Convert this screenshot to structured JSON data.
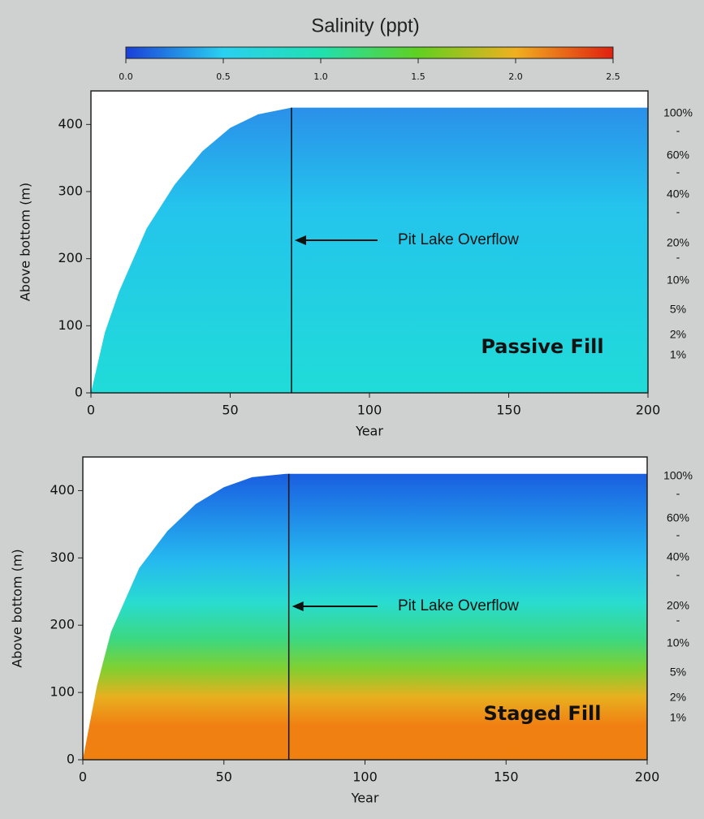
{
  "colorbar": {
    "title": "Salinity (ppt)",
    "lim": [
      0,
      2.5
    ],
    "ticks": [
      {
        "value": 0,
        "label": "0.0"
      },
      {
        "value": 0.5,
        "label": "0.5"
      },
      {
        "value": 1,
        "label": "1.0"
      },
      {
        "value": 1.5,
        "label": "1.5"
      },
      {
        "value": 2,
        "label": "2.0"
      },
      {
        "value": 2.5,
        "label": "2.5"
      }
    ]
  },
  "chart_data": [
    {
      "type": "area",
      "name": "Passive Fill",
      "x_label": "Year",
      "y_label": "Above bottom (m)",
      "xlim": [
        0,
        200
      ],
      "ylim": [
        0,
        450
      ],
      "xticks": [
        0,
        50,
        100,
        150,
        200
      ],
      "yticks": [
        0,
        100,
        200,
        300,
        400
      ],
      "x": [
        0,
        5,
        10,
        20,
        30,
        40,
        50,
        60,
        72,
        200
      ],
      "values": [
        0,
        90,
        150,
        245,
        310,
        360,
        395,
        415,
        425,
        425
      ],
      "overflow_year": 72,
      "annotation": "Pit Lake Overflow",
      "side_labels": [
        "100%",
        "-",
        "60%",
        "-",
        "40%",
        "-",
        "20%",
        "-",
        "10%",
        "5%",
        "2%",
        "1%"
      ]
    },
    {
      "type": "area",
      "name": "Staged Fill",
      "x_label": "Year",
      "y_label": "Above bottom (m)",
      "xlim": [
        0,
        200
      ],
      "ylim": [
        0,
        450
      ],
      "xticks": [
        0,
        50,
        100,
        150,
        200
      ],
      "yticks": [
        0,
        100,
        200,
        300,
        400
      ],
      "x": [
        0,
        5,
        10,
        20,
        30,
        40,
        50,
        60,
        72,
        200
      ],
      "values": [
        0,
        110,
        190,
        285,
        340,
        380,
        405,
        420,
        425,
        425
      ],
      "overflow_year": 73,
      "annotation": "Pit Lake Overflow",
      "side_labels": [
        "100%",
        "-",
        "60%",
        "-",
        "40%",
        "-",
        "20%",
        "-",
        "10%",
        "5%",
        "2%",
        "1%"
      ]
    }
  ]
}
